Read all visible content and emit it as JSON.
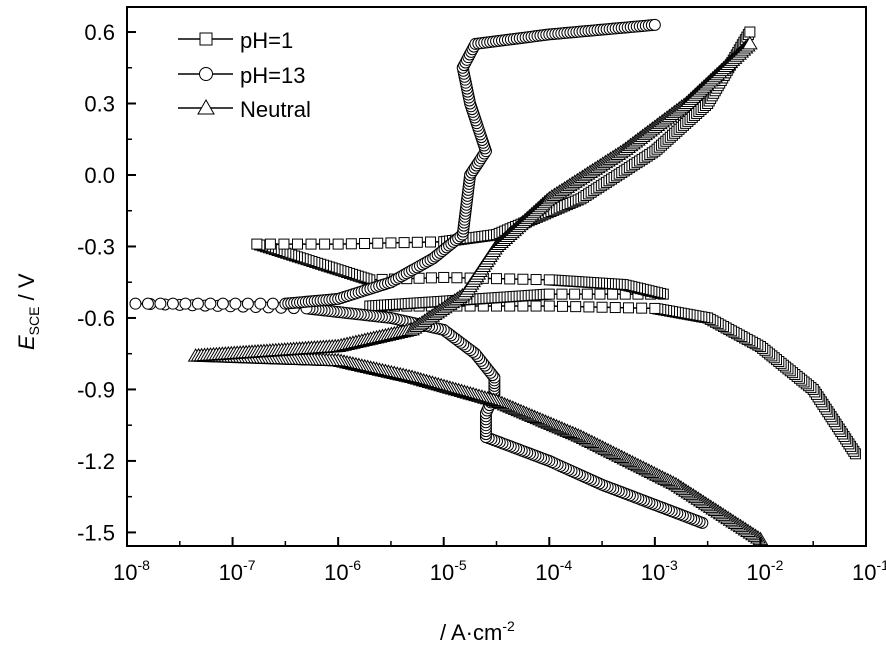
{
  "chart_data": {
    "type": "line",
    "title": "",
    "xlabel": "/ A·cm",
    "xlabel_prefix": "/",
    "xlabel_exponent": "-2",
    "ylabel_main": "E",
    "ylabel_sub": "SCE",
    "ylabel_unit": " / V",
    "xscale": "log",
    "xlim": [
      1e-08,
      0.1
    ],
    "ylim": [
      -1.557,
      0.705
    ],
    "x_ticks": [
      {
        "base": "10",
        "exp": "-8",
        "value": -8
      },
      {
        "base": "10",
        "exp": "-7",
        "value": -7
      },
      {
        "base": "10",
        "exp": "-6",
        "value": -6
      },
      {
        "base": "10",
        "exp": "-5",
        "value": -5
      },
      {
        "base": "10",
        "exp": "-4",
        "value": -4
      },
      {
        "base": "10",
        "exp": "-3",
        "value": -3
      },
      {
        "base": "10",
        "exp": "-2",
        "value": -2
      },
      {
        "base": "10",
        "exp": "-1",
        "value": -1
      }
    ],
    "y_ticks": [
      "0.6",
      "0.3",
      "0.0",
      "-0.3",
      "-0.6",
      "-0.9",
      "-1.2",
      "-1.5"
    ],
    "grid": false,
    "legend_position": "top-left",
    "series": [
      {
        "name": "pH=1",
        "marker": "square",
        "points_log10i_E": [
          [
            -1.1,
            -1.17
          ],
          [
            -1.5,
            -0.9
          ],
          [
            -2.0,
            -0.72
          ],
          [
            -2.5,
            -0.6
          ],
          [
            -3.0,
            -0.56
          ],
          [
            -4.0,
            -0.55
          ],
          [
            -5.0,
            -0.55
          ],
          [
            -5.7,
            -0.55
          ],
          [
            -5.0,
            -0.53
          ],
          [
            -4.0,
            -0.5
          ],
          [
            -2.92,
            -0.5
          ],
          [
            -3.3,
            -0.46
          ],
          [
            -4.0,
            -0.44
          ],
          [
            -5.0,
            -0.43
          ],
          [
            -5.7,
            -0.44
          ],
          [
            -6.77,
            -0.29
          ],
          [
            -6.0,
            -0.29
          ],
          [
            -5.0,
            -0.28
          ],
          [
            -4.5,
            -0.25
          ],
          [
            -3.7,
            -0.1
          ],
          [
            -3.0,
            0.1
          ],
          [
            -2.5,
            0.3
          ],
          [
            -2.1,
            0.6
          ]
        ]
      },
      {
        "name": "pH=13",
        "marker": "circle",
        "points_log10i_E": [
          [
            -2.55,
            -1.46
          ],
          [
            -3.5,
            -1.3
          ],
          [
            -4.0,
            -1.2
          ],
          [
            -4.6,
            -1.1
          ],
          [
            -4.6,
            -1.0
          ],
          [
            -4.52,
            -0.92
          ],
          [
            -4.52,
            -0.85
          ],
          [
            -4.7,
            -0.75
          ],
          [
            -5.0,
            -0.65
          ],
          [
            -5.5,
            -0.6
          ],
          [
            -6.3,
            -0.56
          ],
          [
            -7.5,
            -0.545
          ],
          [
            -7.92,
            -0.54
          ],
          [
            -6.5,
            -0.54
          ],
          [
            -6.0,
            -0.52
          ],
          [
            -5.5,
            -0.45
          ],
          [
            -5.1,
            -0.35
          ],
          [
            -4.82,
            -0.25
          ],
          [
            -4.75,
            0.0
          ],
          [
            -4.6,
            0.1
          ],
          [
            -4.75,
            0.3
          ],
          [
            -4.82,
            0.45
          ],
          [
            -4.7,
            0.55
          ],
          [
            -4.0,
            0.59
          ],
          [
            -3.0,
            0.63
          ]
        ]
      },
      {
        "name": "Neutral",
        "marker": "triangle",
        "points_log10i_E": [
          [
            -2.0,
            -1.53
          ],
          [
            -2.8,
            -1.3
          ],
          [
            -3.7,
            -1.1
          ],
          [
            -4.5,
            -0.95
          ],
          [
            -5.3,
            -0.85
          ],
          [
            -6.0,
            -0.78
          ],
          [
            -7.35,
            -0.76
          ],
          [
            -6.0,
            -0.72
          ],
          [
            -5.3,
            -0.65
          ],
          [
            -4.8,
            -0.5
          ],
          [
            -4.5,
            -0.3
          ],
          [
            -4.0,
            -0.1
          ],
          [
            -3.3,
            0.1
          ],
          [
            -2.7,
            0.3
          ],
          [
            -2.1,
            0.55
          ]
        ]
      }
    ]
  }
}
